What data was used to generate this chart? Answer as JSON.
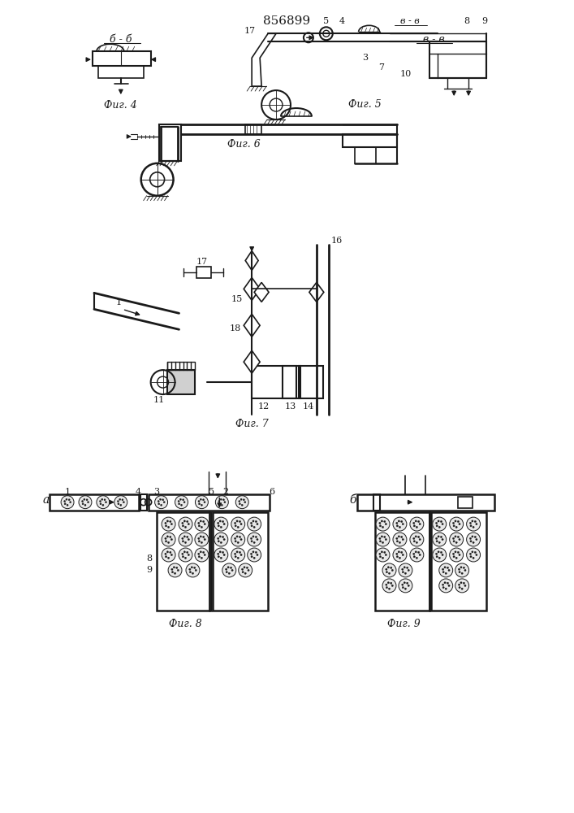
{
  "title": "856899",
  "bg": "#ffffff",
  "lc": "#1a1a1a",
  "fig_labels": {
    "fig4": "Фиг. 4",
    "fig5": "Фиг. 5",
    "fig6": "Фиг. 6",
    "fig7": "Фиг. 7",
    "fig8": "Фиг. 8",
    "fig9": "Фиг. 9"
  },
  "bb": "б - б",
  "vv": "в - в",
  "let_a": "а",
  "let_b": "б"
}
